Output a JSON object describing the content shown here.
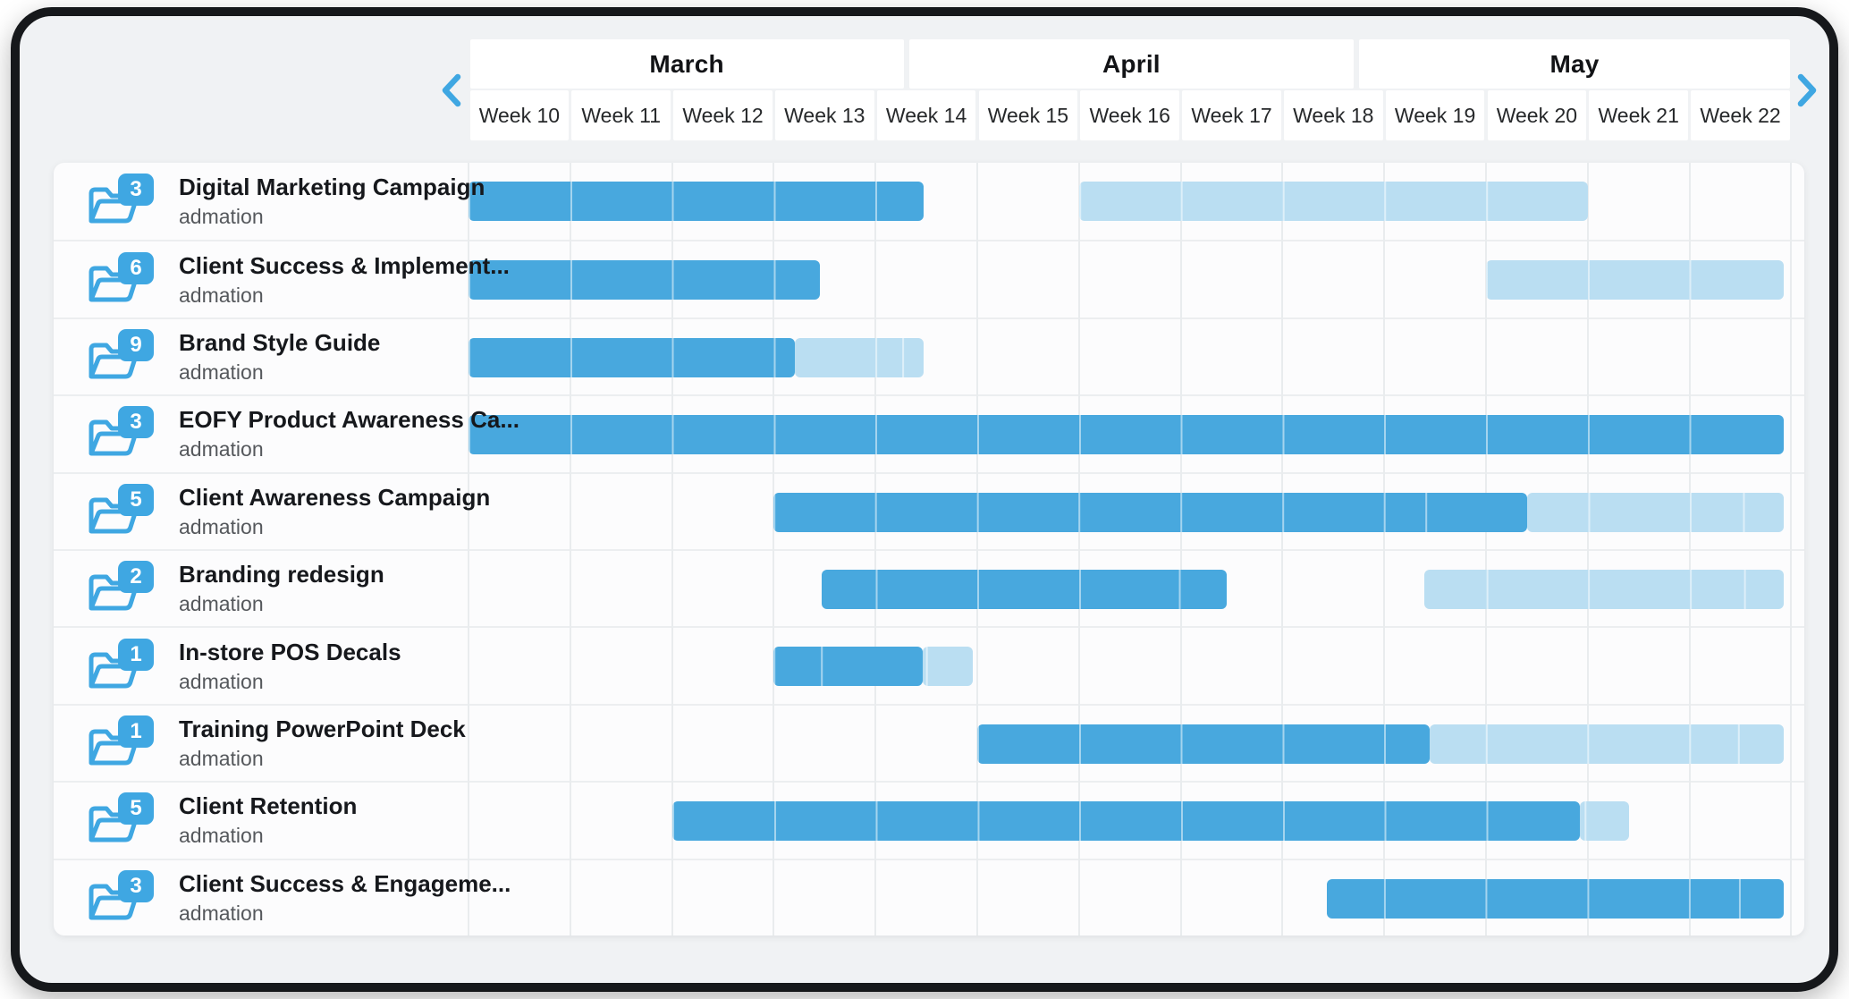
{
  "colors": {
    "accent": "#3fa7e2",
    "bar_solid": "#48a8de",
    "bar_light": "#badef2",
    "frame": "#16181b",
    "card_bg": "#f0f2f4"
  },
  "timeline": {
    "months": [
      {
        "label": "March",
        "start": 10,
        "end": 14.29
      },
      {
        "label": "April",
        "start": 14.32,
        "end": 18.71
      },
      {
        "label": "May",
        "start": 18.74,
        "end": 23
      }
    ],
    "weeks": [
      "Week 10",
      "Week 11",
      "Week 12",
      "Week 13",
      "Week 14",
      "Week 15",
      "Week 16",
      "Week 17",
      "Week 18",
      "Week 19",
      "Week 20",
      "Week 21",
      "Week 22"
    ],
    "nav": {
      "prev_icon": "chevron-left-icon",
      "next_icon": "chevron-right-icon"
    }
  },
  "row_icon": "open-folder-icon",
  "projects": [
    {
      "badge": "3",
      "title": "Digital Marketing Campaign",
      "subtitle": "admation",
      "bars": [
        {
          "start": 10,
          "end": 14.47,
          "style": "solid"
        },
        {
          "start": 16,
          "end": 21,
          "style": "light"
        }
      ]
    },
    {
      "badge": "6",
      "title": "Client Success & Implement...",
      "subtitle": "admation",
      "bars": [
        {
          "start": 10,
          "end": 13.45,
          "style": "solid"
        },
        {
          "start": 20,
          "end": 22.93,
          "style": "light"
        }
      ]
    },
    {
      "badge": "9",
      "title": "Brand Style Guide",
      "subtitle": "admation",
      "bars": [
        {
          "start": 10,
          "end": 13.21,
          "style": "solid"
        },
        {
          "start": 13.21,
          "end": 14.47,
          "style": "light"
        }
      ]
    },
    {
      "badge": "3",
      "title": "EOFY Product Awareness Ca...",
      "subtitle": "admation",
      "bars": [
        {
          "start": 10,
          "end": 22.93,
          "style": "solid"
        }
      ]
    },
    {
      "badge": "5",
      "title": "Client Awareness Campaign",
      "subtitle": "admation",
      "bars": [
        {
          "start": 13,
          "end": 20.4,
          "style": "solid"
        },
        {
          "start": 20.4,
          "end": 22.93,
          "style": "light"
        }
      ]
    },
    {
      "badge": "2",
      "title": "Branding redesign",
      "subtitle": "admation",
      "bars": [
        {
          "start": 13.47,
          "end": 17.45,
          "style": "solid"
        },
        {
          "start": 19.39,
          "end": 22.93,
          "style": "light"
        }
      ]
    },
    {
      "badge": "1",
      "title": "In-store POS Decals",
      "subtitle": "admation",
      "bars": [
        {
          "start": 13,
          "end": 14.46,
          "style": "solid"
        },
        {
          "start": 14.46,
          "end": 14.96,
          "style": "light"
        }
      ]
    },
    {
      "badge": "1",
      "title": "Training PowerPoint Deck",
      "subtitle": "admation",
      "bars": [
        {
          "start": 15,
          "end": 19.45,
          "style": "solid"
        },
        {
          "start": 19.45,
          "end": 22.93,
          "style": "light"
        }
      ]
    },
    {
      "badge": "5",
      "title": "Client Retention",
      "subtitle": "admation",
      "bars": [
        {
          "start": 12,
          "end": 20.92,
          "style": "solid"
        },
        {
          "start": 20.92,
          "end": 21.41,
          "style": "light"
        }
      ]
    },
    {
      "badge": "3",
      "title": "Client Success & Engageme...",
      "subtitle": "admation",
      "bars": [
        {
          "start": 18.44,
          "end": 22.93,
          "style": "solid"
        }
      ]
    }
  ]
}
